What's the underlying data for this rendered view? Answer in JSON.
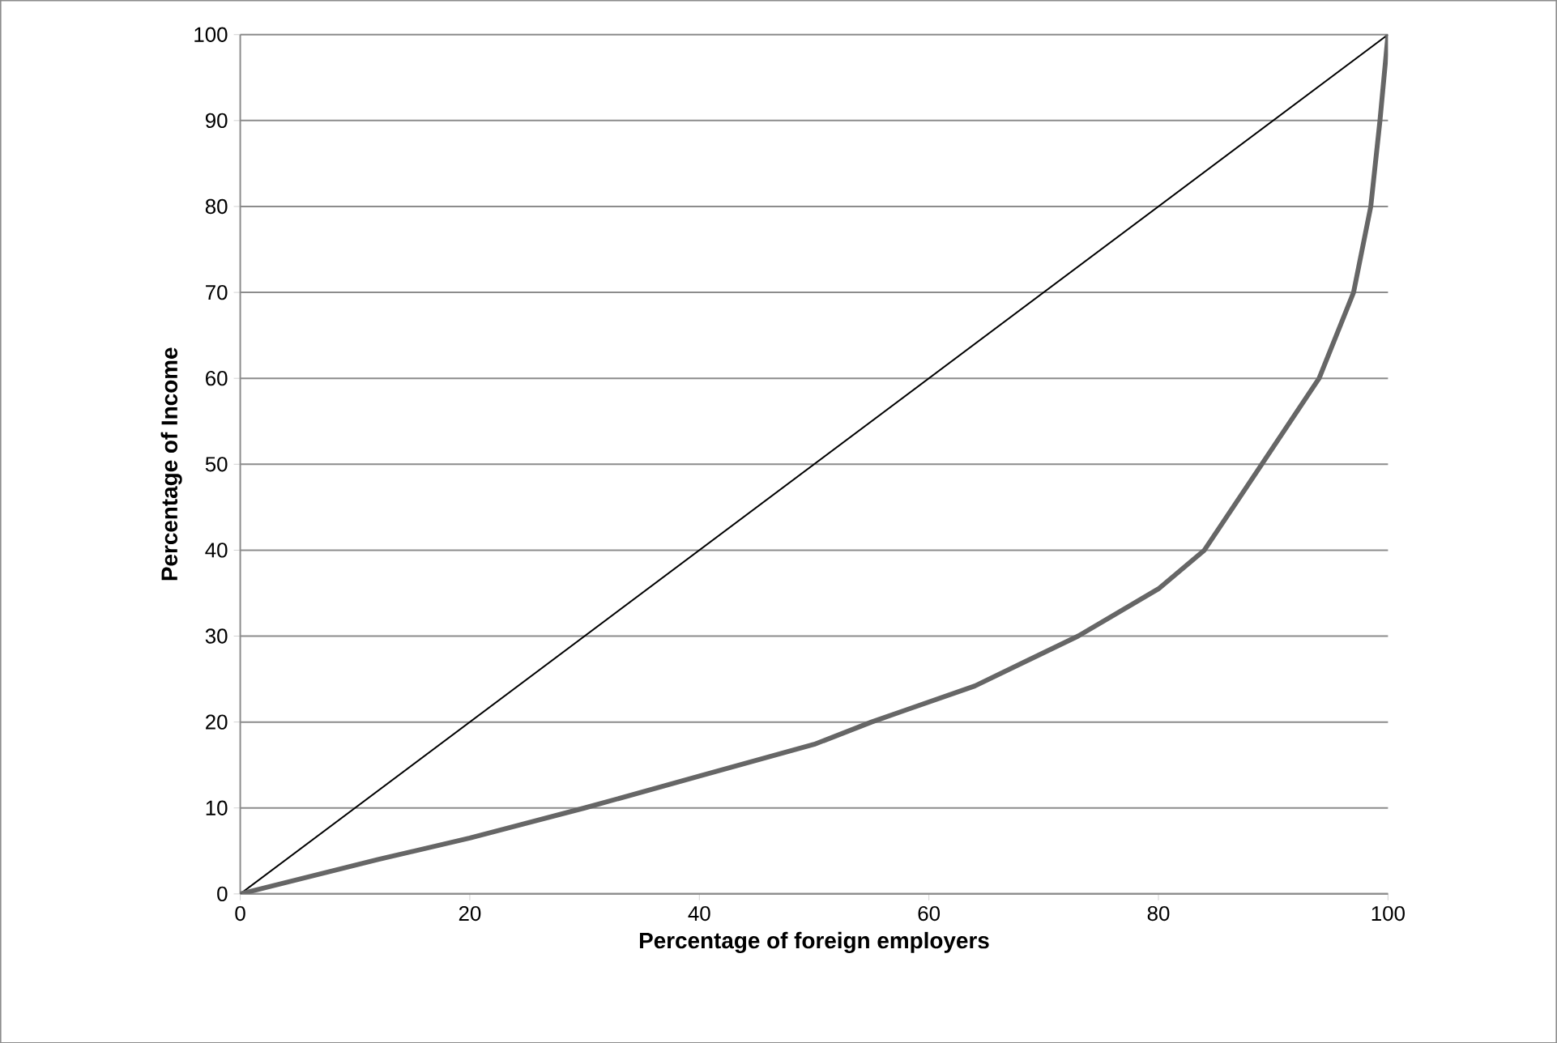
{
  "chart_data": {
    "type": "line",
    "xlabel": "Percentage of foreign employers",
    "ylabel": "Percentage of Income",
    "xlim": [
      0,
      100
    ],
    "ylim": [
      0,
      100
    ],
    "xticks": [
      0,
      20,
      40,
      60,
      80,
      100
    ],
    "yticks": [
      0,
      10,
      20,
      30,
      40,
      50,
      60,
      70,
      80,
      90,
      100
    ],
    "grid": "y",
    "marker": "none",
    "series": [
      {
        "color": "#000000",
        "x": [
          0,
          100
        ],
        "values": [
          0,
          100
        ]
      },
      {
        "color": "#666666",
        "x": [
          0,
          12,
          20,
          30,
          40,
          50,
          55,
          58,
          64,
          73,
          80,
          84,
          89,
          94,
          97,
          98.5,
          99.3,
          100
        ],
        "values": [
          0,
          4,
          6.5,
          10,
          13.7,
          17.4,
          20,
          21.4,
          24.2,
          30,
          35.5,
          40,
          50,
          60,
          70,
          80,
          90,
          100
        ]
      }
    ]
  }
}
